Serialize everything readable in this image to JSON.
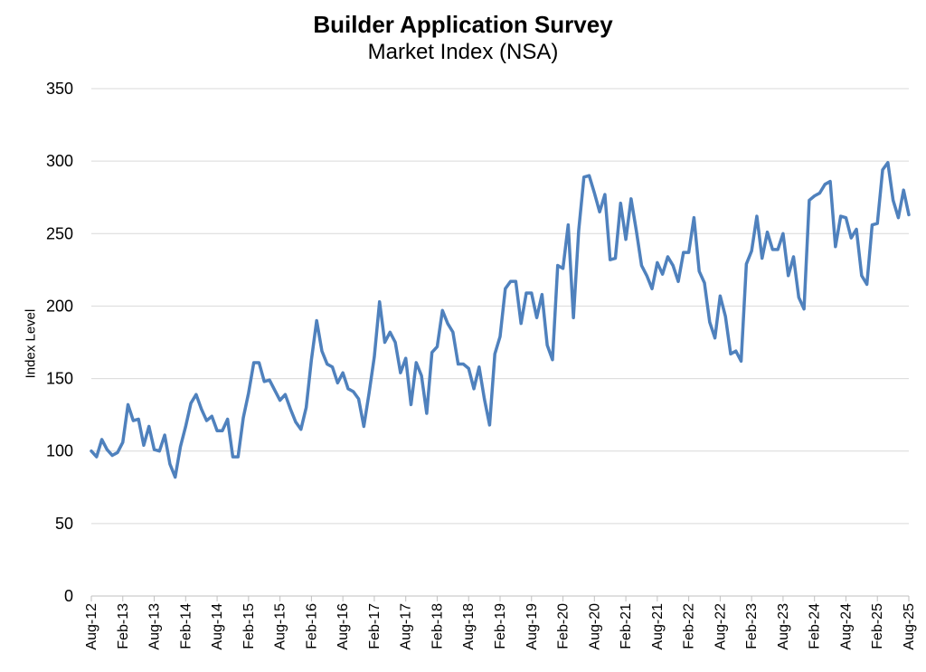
{
  "chart_data": {
    "type": "line",
    "title": "Builder Application Survey",
    "subtitle": "Market Index (NSA)",
    "xlabel": "",
    "ylabel": "Index Level",
    "ylim": [
      0,
      350
    ],
    "yticks": [
      0,
      50,
      100,
      150,
      200,
      250,
      300,
      350
    ],
    "grid": true,
    "legend": "none",
    "line_color": "#4f81bd",
    "x_tick_labels": [
      "Aug-12",
      "Feb-13",
      "Aug-13",
      "Feb-14",
      "Aug-14",
      "Feb-15",
      "Aug-15",
      "Feb-16",
      "Aug-16",
      "Feb-17",
      "Aug-17",
      "Feb-18",
      "Aug-18",
      "Feb-19",
      "Aug-19",
      "Feb-20",
      "Aug-20",
      "Feb-21",
      "Aug-21",
      "Feb-22",
      "Aug-22",
      "Feb-23",
      "Aug-23",
      "Feb-24",
      "Aug-24",
      "Feb-25",
      "Aug-25"
    ],
    "x_start": "Aug-12",
    "x_end": "Aug-25",
    "series": [
      {
        "name": "",
        "values": [
          100,
          96,
          108,
          101,
          97,
          99,
          106,
          132,
          121,
          122,
          104,
          117,
          101,
          100,
          111,
          91,
          82,
          103,
          117,
          133,
          139,
          129,
          121,
          124,
          114,
          114,
          122,
          96,
          96,
          123,
          140,
          161,
          161,
          148,
          149,
          142,
          135,
          139,
          129,
          120,
          115,
          130,
          163,
          190,
          169,
          160,
          158,
          147,
          154,
          143,
          141,
          136,
          117,
          140,
          165,
          203,
          175,
          182,
          175,
          154,
          164,
          132,
          161,
          152,
          126,
          168,
          172,
          197,
          188,
          182,
          160,
          160,
          157,
          143,
          158,
          136,
          118,
          167,
          179,
          212,
          217,
          217,
          188,
          209,
          209,
          192,
          208,
          173,
          163,
          228,
          226,
          256,
          192,
          252,
          289,
          290,
          278,
          265,
          277,
          232,
          233,
          271,
          246,
          274,
          252,
          228,
          221,
          212,
          230,
          222,
          234,
          228,
          217,
          237,
          237,
          261,
          224,
          216,
          189,
          178,
          207,
          193,
          167,
          169,
          162,
          229,
          238,
          262,
          233,
          251,
          239,
          239,
          250,
          221,
          234,
          206,
          198,
          273,
          276,
          278,
          284,
          286,
          241,
          262,
          261,
          247,
          253,
          221,
          215,
          256,
          257,
          294,
          299,
          273,
          261,
          280,
          263
        ]
      }
    ]
  }
}
